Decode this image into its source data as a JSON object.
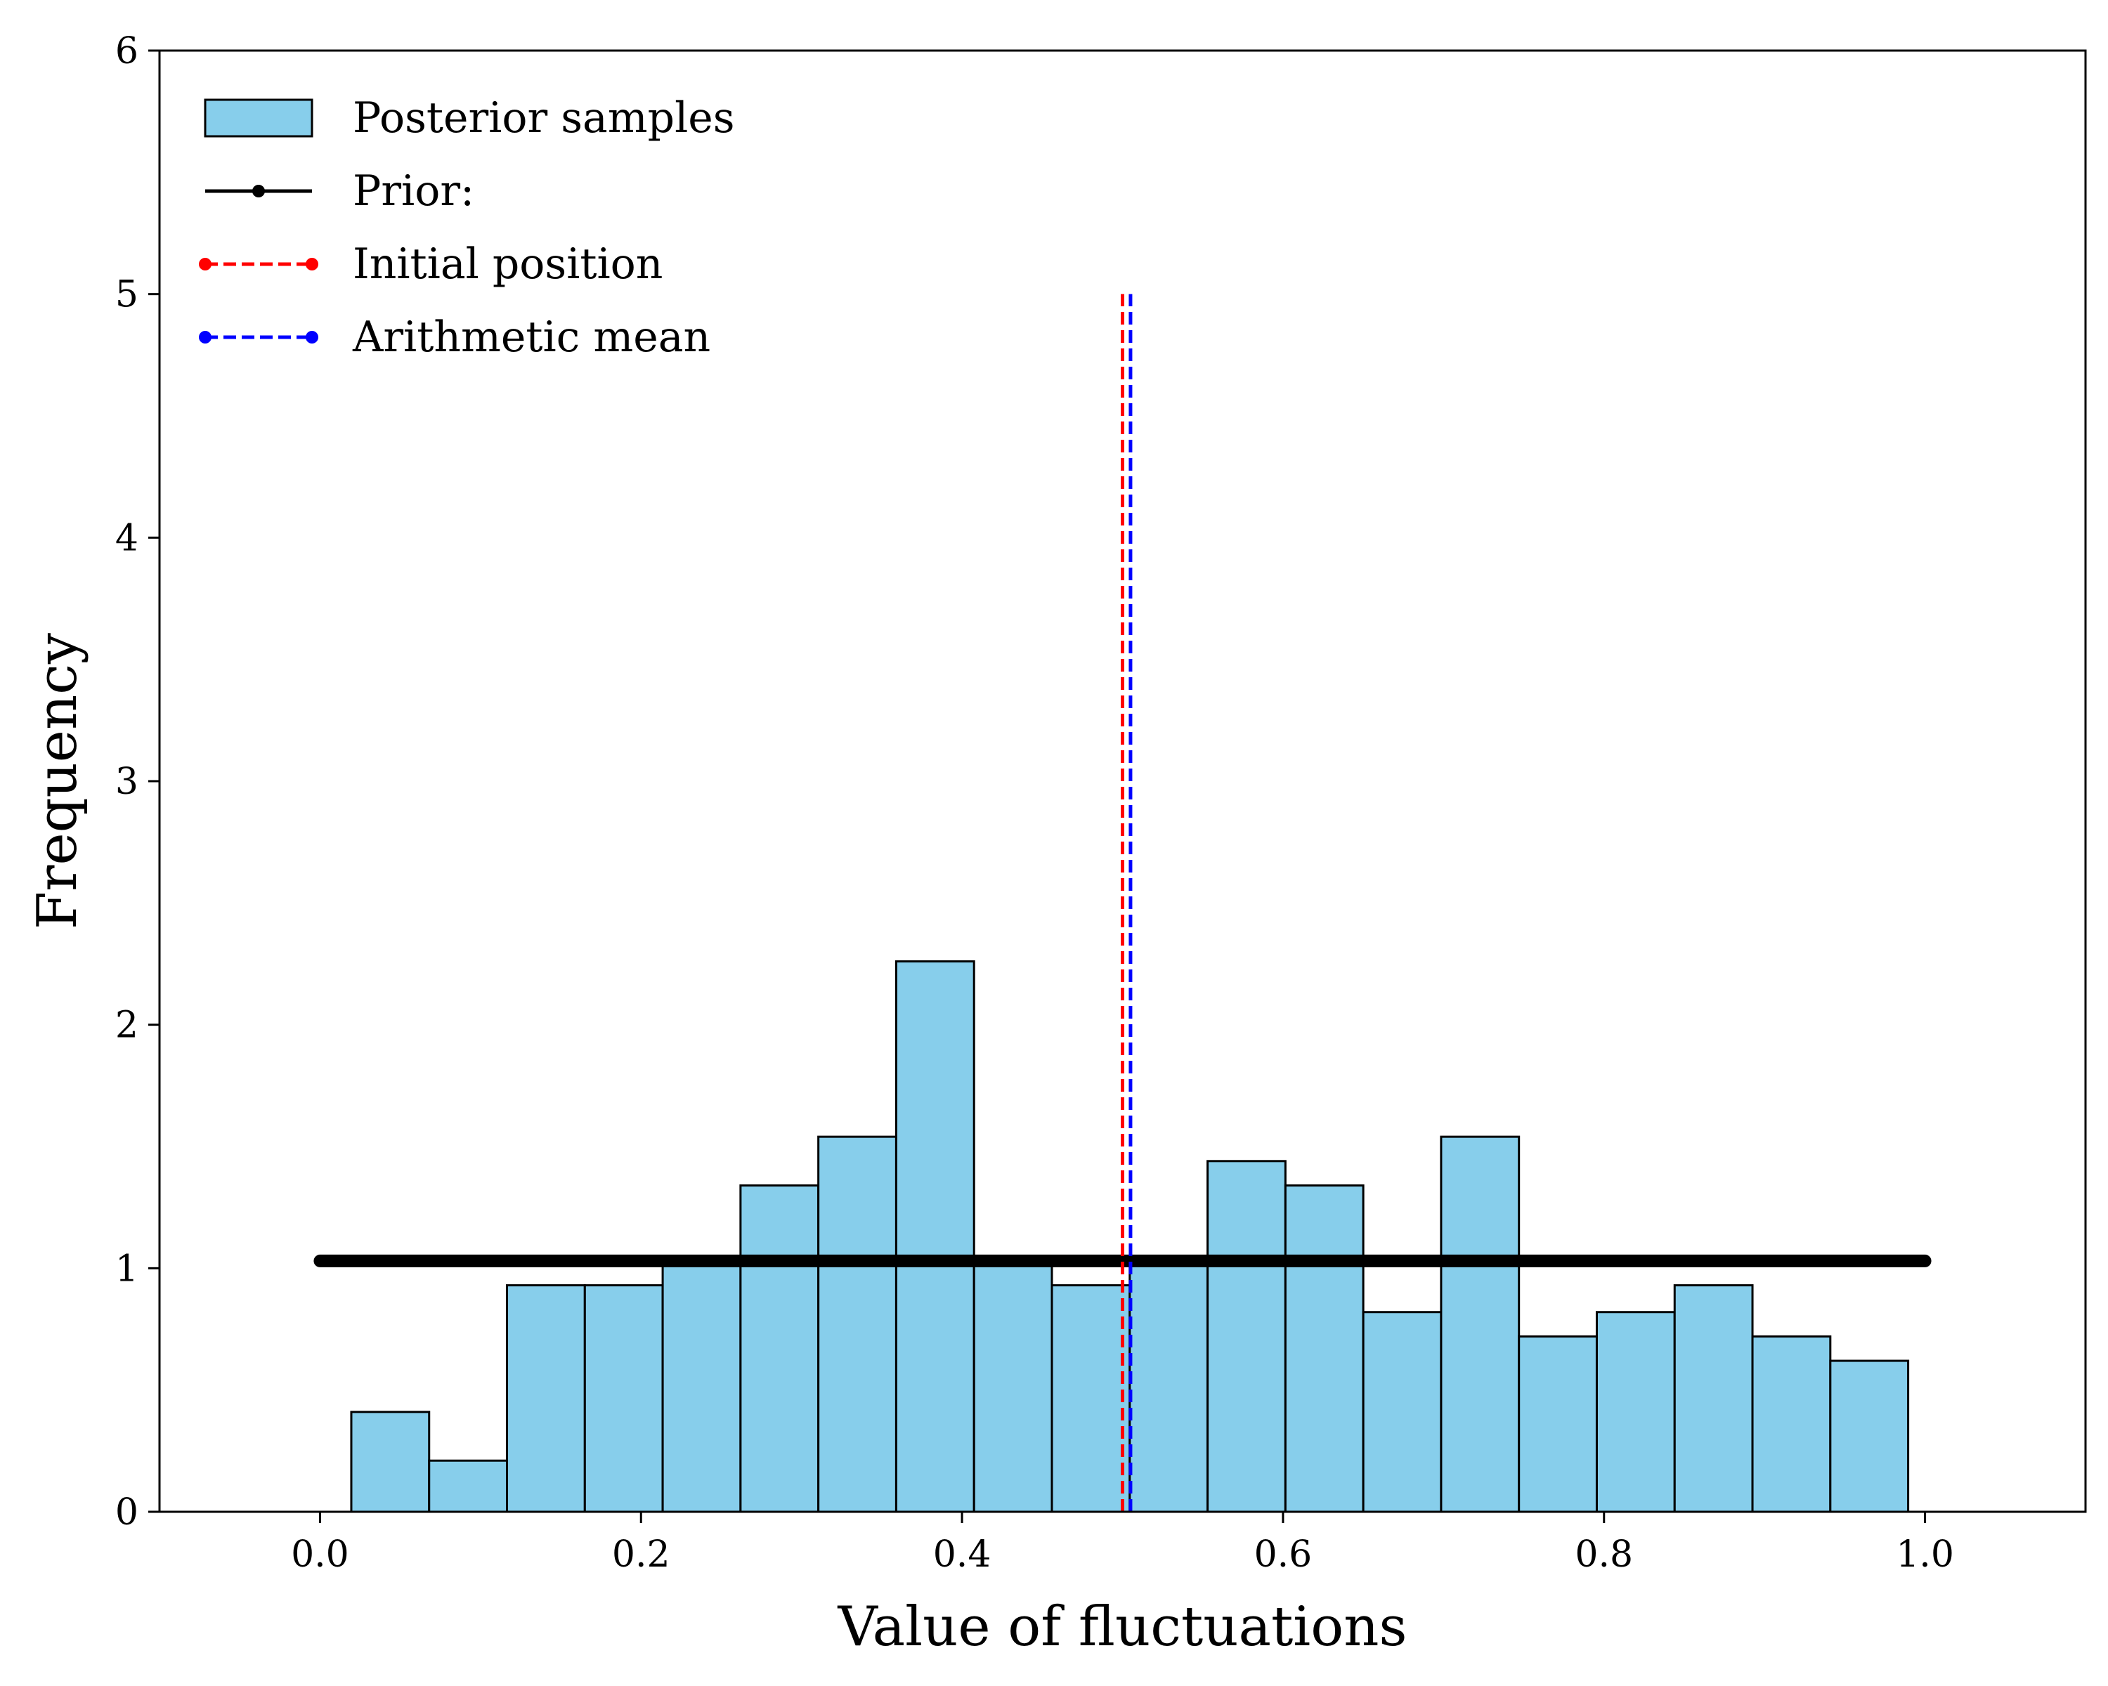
{
  "chart_data": {
    "type": "bar",
    "xlabel": "Value of fluctuations",
    "ylabel": "Frequency",
    "xlim": [
      -0.1,
      1.1
    ],
    "ylim": [
      0,
      6
    ],
    "xticks": [
      "0.0",
      "0.2",
      "0.4",
      "0.6",
      "0.8",
      "1.0"
    ],
    "yticks": [
      "0",
      "1",
      "2",
      "3",
      "4",
      "5",
      "6"
    ],
    "grid": false,
    "legend_position": "top-left",
    "colors": {
      "bars": "#87CEEB",
      "bar_edge": "#000000",
      "prior": "#000000",
      "initial_position": "#ff0000",
      "arithmetic_mean": "#0000ff"
    },
    "series": [
      {
        "name": "Posterior samples",
        "type": "histogram",
        "bin_edges": [
          0.0195,
          0.068,
          0.1165,
          0.165,
          0.2135,
          0.262,
          0.3105,
          0.359,
          0.4075,
          0.456,
          0.5045,
          0.553,
          0.6015,
          0.65,
          0.6985,
          0.747,
          0.7955,
          0.844,
          0.8925,
          0.941,
          0.9895
        ],
        "values": [
          0.41,
          0.21,
          0.93,
          0.93,
          1.03,
          1.34,
          1.54,
          2.26,
          1.03,
          0.93,
          1.03,
          1.44,
          1.34,
          0.82,
          1.54,
          0.72,
          0.82,
          0.93,
          0.72,
          0.62
        ]
      },
      {
        "name": "Prior:",
        "type": "line",
        "x": [
          0.0,
          1.0
        ],
        "y": [
          1.03,
          1.03
        ]
      },
      {
        "name": "Initial position",
        "type": "vline",
        "x": 0.5,
        "y_range": [
          0,
          5
        ]
      },
      {
        "name": "Arithmetic mean",
        "type": "vline",
        "x": 0.505,
        "y_range": [
          0,
          5
        ]
      }
    ]
  }
}
